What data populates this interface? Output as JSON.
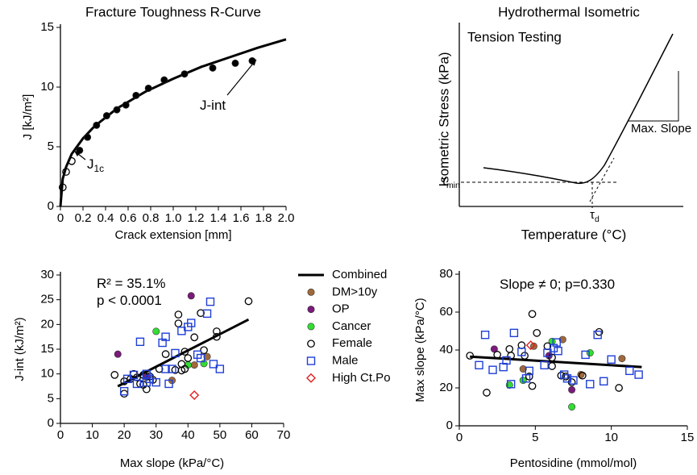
{
  "chart_data": [
    {
      "type": "scatter",
      "title": "Fracture Toughness R-Curve",
      "x_label": "Crack extension [mm]",
      "y_label": "J [kJ/m²]",
      "xlim": [
        0,
        2
      ],
      "xticks": [
        0,
        0.2,
        0.4,
        0.6,
        0.8,
        {
          "value": 1,
          "label": "1.0"
        },
        1.2,
        1.4,
        1.6,
        1.8,
        {
          "value": 2,
          "label": "2.0"
        }
      ],
      "ylim": [
        0,
        15
      ],
      "yticks": [
        0,
        5,
        10,
        15
      ],
      "annotations": [
        {
          "text": "J-int"
        },
        {
          "text": "J",
          "subscript": "1c"
        }
      ],
      "series": [
        {
          "color": "#000000",
          "marker": "none",
          "line": true,
          "x": [
            0,
            0.02,
            0.05,
            0.1,
            0.2,
            0.3,
            0.5,
            0.75,
            1,
            1.25,
            1.5,
            1.75,
            2
          ],
          "values": [
            0,
            2.3,
            3.3,
            4.4,
            5.7,
            6.7,
            8.2,
            9.6,
            10.7,
            11.7,
            12.5,
            13.3,
            14.0
          ]
        },
        {
          "color": "#000000",
          "marker": "circle-filled",
          "x": [
            0.17,
            0.24,
            0.32,
            0.41,
            0.5,
            0.58,
            0.67,
            0.78,
            0.92,
            1.1,
            1.35,
            1.55,
            1.7
          ],
          "values": [
            4.7,
            5.8,
            6.8,
            7.6,
            8.1,
            8.5,
            9.3,
            9.9,
            10.6,
            11.1,
            11.6,
            12.0,
            12.2
          ]
        },
        {
          "color": "#000000",
          "marker": "circle-open",
          "x": [
            0.02,
            0.05,
            0.1
          ],
          "values": [
            1.6,
            2.9,
            3.8
          ]
        }
      ]
    },
    {
      "type": "schematic",
      "title": "Hydrothermal Isometric",
      "subtitle": "Tension Testing",
      "x_label": "Temperature (°C)",
      "y_label": "Isometric Stress (kPa)",
      "annotations": [
        {
          "text": "Max. Slope"
        },
        {
          "text": "τ",
          "subscript": "min"
        },
        {
          "text": "τ",
          "subscript": "d"
        }
      ]
    },
    {
      "type": "scatter",
      "x_label": "Max slope (kPa/°C)",
      "y_label": "J-int (kJ/m²)",
      "legend": "right",
      "xlim": [
        0,
        70
      ],
      "xticks": [
        0,
        10,
        20,
        30,
        40,
        50,
        60,
        70
      ],
      "ylim": [
        0,
        30
      ],
      "yticks": [
        0,
        5,
        10,
        15,
        20,
        25,
        30
      ],
      "annotations": [
        {
          "text": "R² = 35.1%"
        },
        {
          "text": "p < 0.0001"
        }
      ],
      "series": [
        {
          "name": "Combined",
          "color": "#000000",
          "marker": "none",
          "line": true,
          "x": [
            18,
            59
          ],
          "values": [
            7.5,
            21
          ]
        },
        {
          "name": "DM>10y",
          "color": "#a0693a",
          "marker": "circle-filled",
          "x": [
            27,
            35,
            42,
            46
          ],
          "values": [
            9.3,
            8.7,
            11.8,
            13.5
          ]
        },
        {
          "name": "OP",
          "color": "#7b1a7b",
          "marker": "circle-filled",
          "x": [
            18,
            41,
            27
          ],
          "values": [
            14,
            25.8,
            9.5
          ]
        },
        {
          "name": "Cancer",
          "color": "#33dd33",
          "marker": "circle-filled",
          "x": [
            30,
            40,
            45
          ],
          "values": [
            18.6,
            11.8,
            12.1
          ]
        },
        {
          "name": "Female",
          "color": "#000000",
          "marker": "circle-open",
          "x": [
            17,
            20,
            20,
            22,
            23,
            24,
            25,
            26,
            26,
            27,
            28,
            29,
            31,
            33,
            36,
            37,
            37,
            38,
            39,
            39,
            40,
            42,
            44,
            45,
            49,
            49,
            59,
            38
          ],
          "values": [
            9.8,
            6,
            8.5,
            9,
            10,
            9.3,
            8,
            7.8,
            9.8,
            6.9,
            9.5,
            8.8,
            11,
            14,
            10.8,
            20.2,
            22,
            12,
            14.5,
            11,
            13.2,
            17.4,
            22.3,
            14.8,
            17.5,
            18.6,
            24.7,
            10.7
          ]
        },
        {
          "name": "Male",
          "color": "#1f3fd6",
          "marker": "square-open",
          "x": [
            20,
            21,
            23,
            24,
            25,
            27,
            28,
            30,
            32,
            33,
            33,
            34,
            35,
            36,
            38,
            40,
            41,
            43,
            44,
            46,
            47,
            48,
            50,
            27
          ],
          "values": [
            6.5,
            9,
            9.8,
            8,
            16.5,
            8.3,
            9,
            8.3,
            16.3,
            17.5,
            11,
            8,
            11,
            14.2,
            18.7,
            19.5,
            20.3,
            13.9,
            13.2,
            22.2,
            24.6,
            12,
            11,
            10
          ]
        },
        {
          "name": "High Ct.Po",
          "color": "#e02020",
          "marker": "diamond-open",
          "x": [
            42
          ],
          "values": [
            5.7
          ]
        }
      ]
    },
    {
      "type": "scatter",
      "x_label": "Pentosidine (mmol/mol)",
      "y_label": "Max slope (kPa/°C)",
      "xlim": [
        0,
        15
      ],
      "xticks": [
        0,
        5,
        10,
        15
      ],
      "ylim": [
        0,
        80
      ],
      "yticks": [
        0,
        20,
        40,
        60,
        80
      ],
      "annotations": [
        {
          "text": "Slope ≠ 0; p=0.330"
        }
      ],
      "series": [
        {
          "color": "#000000",
          "marker": "none",
          "line": true,
          "x": [
            0.7,
            12
          ],
          "values": [
            36.5,
            31
          ]
        },
        {
          "color": "#a0693a",
          "marker": "circle-filled",
          "x": [
            4.9,
            6.8,
            8,
            10.7,
            4.2
          ],
          "values": [
            42,
            45.5,
            27,
            35.5,
            30
          ]
        },
        {
          "color": "#7b1a7b",
          "marker": "circle-filled",
          "x": [
            2.3,
            7.4,
            5.9
          ],
          "values": [
            40.5,
            19,
            37
          ]
        },
        {
          "color": "#33dd33",
          "marker": "circle-filled",
          "x": [
            3.3,
            6.1,
            8.6,
            7.4,
            4.2
          ],
          "values": [
            21.5,
            44.5,
            38.5,
            10,
            24
          ]
        },
        {
          "color": "#000000",
          "marker": "circle-open",
          "x": [
            0.7,
            1.8,
            2.5,
            3.3,
            3.4,
            4.1,
            4.3,
            4.6,
            4.8,
            5.1,
            5.8,
            6.1,
            6.1,
            6.7,
            7,
            7.4,
            8.1,
            9.2,
            10.5,
            4.8
          ],
          "values": [
            37,
            17.5,
            37.5,
            40.5,
            37,
            42.5,
            37,
            26,
            59,
            49,
            42,
            36,
            31.5,
            26.5,
            26,
            23,
            26.5,
            49.5,
            20,
            21
          ]
        },
        {
          "color": "#1f3fd6",
          "marker": "square-open",
          "x": [
            1.3,
            1.7,
            2.2,
            2.9,
            3.1,
            3.4,
            3.6,
            4.1,
            4.4,
            4.6,
            5.8,
            6.2,
            6.4,
            6.5,
            6.9,
            7.1,
            7.5,
            8.3,
            8.6,
            9.1,
            9.5,
            10,
            11.2,
            11.8,
            5.6
          ],
          "values": [
            32,
            48,
            29.5,
            31,
            34.5,
            22,
            49,
            39,
            25,
            29,
            38.5,
            41,
            44,
            39.5,
            27,
            25,
            24,
            37.5,
            22,
            48,
            23.5,
            35,
            29,
            27,
            32
          ]
        },
        {
          "color": "#e02020",
          "marker": "diamond-open",
          "x": [
            4.7
          ],
          "values": [
            42.5
          ]
        }
      ]
    }
  ]
}
